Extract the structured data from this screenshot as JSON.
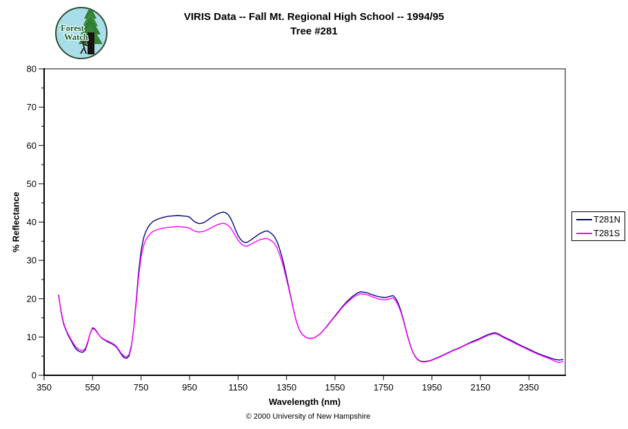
{
  "header": {
    "title_line1": "VIRIS Data -- Fall Mt. Regional High School -- 1994/95",
    "title_line2": "Tree #281"
  },
  "logo": {
    "line1": "Forest",
    "line2": "Watch",
    "circle_fill": "#a9dde9",
    "ring_color": "#2a4d2e",
    "tree_green": "#2e7d32",
    "trunk_color": "#17140d"
  },
  "footer": {
    "copyright": "© 2000 University of New Hampshire"
  },
  "chart_data": {
    "type": "line",
    "title": "VIRIS Data -- Fall Mt. Regional High School -- 1994/95 Tree #281",
    "xlabel": "Wavelength (nm)",
    "ylabel": "% Reflectance",
    "xlim": [
      350,
      2500
    ],
    "ylim": [
      0,
      80
    ],
    "x_major_ticks": [
      350,
      550,
      750,
      950,
      1150,
      1350,
      1550,
      1750,
      1950,
      2150,
      2350
    ],
    "y_major_ticks": [
      0,
      10,
      20,
      30,
      40,
      50,
      60,
      70,
      80
    ],
    "y_minor_step": 5,
    "grid": false,
    "legend_position": "right-outside",
    "plot_border_color": "#808080",
    "axis_color": "#000000",
    "x": [
      410,
      420,
      430,
      440,
      450,
      460,
      470,
      480,
      490,
      500,
      510,
      520,
      530,
      540,
      550,
      560,
      570,
      580,
      590,
      600,
      610,
      620,
      630,
      640,
      650,
      660,
      670,
      680,
      690,
      700,
      710,
      720,
      730,
      740,
      750,
      760,
      770,
      780,
      790,
      800,
      820,
      840,
      860,
      880,
      900,
      920,
      940,
      950,
      960,
      970,
      980,
      990,
      1000,
      1010,
      1020,
      1040,
      1060,
      1080,
      1090,
      1100,
      1110,
      1120,
      1130,
      1140,
      1150,
      1160,
      1170,
      1180,
      1190,
      1200,
      1220,
      1240,
      1260,
      1270,
      1280,
      1290,
      1300,
      1310,
      1320,
      1330,
      1340,
      1350,
      1360,
      1370,
      1380,
      1390,
      1400,
      1410,
      1420,
      1430,
      1440,
      1450,
      1460,
      1470,
      1480,
      1490,
      1500,
      1520,
      1540,
      1560,
      1580,
      1600,
      1620,
      1640,
      1655,
      1670,
      1685,
      1700,
      1720,
      1740,
      1760,
      1775,
      1790,
      1800,
      1810,
      1820,
      1830,
      1840,
      1850,
      1860,
      1870,
      1880,
      1890,
      1900,
      1910,
      1920,
      1930,
      1940,
      1950,
      1960,
      1980,
      2000,
      2020,
      2040,
      2060,
      2080,
      2100,
      2120,
      2140,
      2160,
      2180,
      2200,
      2210,
      2220,
      2230,
      2240,
      2260,
      2280,
      2300,
      2320,
      2340,
      2360,
      2380,
      2400,
      2420,
      2440,
      2460,
      2475,
      2490
    ],
    "series": [
      {
        "name": "T281N",
        "color": "#000080",
        "values": [
          20.9,
          16.5,
          13.5,
          11.8,
          10.3,
          9.2,
          8.0,
          7.0,
          6.4,
          6.1,
          6.0,
          6.6,
          8.5,
          11.0,
          12.4,
          12.1,
          11.1,
          10.2,
          9.6,
          9.2,
          8.8,
          8.5,
          8.2,
          7.8,
          7.2,
          6.3,
          5.3,
          4.6,
          4.4,
          5.0,
          7.5,
          12.5,
          19.5,
          27.0,
          32.5,
          35.8,
          37.6,
          38.8,
          39.6,
          40.2,
          40.8,
          41.2,
          41.5,
          41.6,
          41.7,
          41.6,
          41.5,
          41.3,
          40.7,
          40.1,
          39.8,
          39.6,
          39.7,
          39.9,
          40.3,
          41.2,
          42.0,
          42.5,
          42.6,
          42.4,
          41.9,
          40.9,
          39.5,
          37.9,
          36.5,
          35.5,
          34.9,
          34.6,
          34.8,
          35.2,
          36.1,
          37.0,
          37.6,
          37.7,
          37.4,
          36.9,
          36.2,
          35.0,
          33.3,
          31.2,
          28.7,
          25.8,
          22.8,
          19.8,
          16.8,
          14.2,
          12.3,
          11.1,
          10.4,
          9.9,
          9.7,
          9.6,
          9.7,
          10.0,
          10.4,
          10.9,
          11.6,
          13.1,
          14.7,
          16.3,
          17.9,
          19.3,
          20.5,
          21.4,
          21.8,
          21.7,
          21.5,
          21.1,
          20.7,
          20.4,
          20.3,
          20.6,
          20.8,
          20.1,
          18.9,
          17.2,
          15.0,
          12.6,
          10.2,
          8.0,
          6.2,
          5.0,
          4.2,
          3.8,
          3.6,
          3.6,
          3.7,
          3.8,
          4.0,
          4.3,
          4.8,
          5.4,
          6.0,
          6.6,
          7.1,
          7.7,
          8.3,
          8.9,
          9.4,
          10.0,
          10.6,
          11.0,
          11.1,
          10.9,
          10.6,
          10.2,
          9.6,
          9.0,
          8.3,
          7.7,
          7.1,
          6.5,
          5.9,
          5.4,
          4.9,
          4.5,
          4.1,
          4.0,
          4.1
        ]
      },
      {
        "name": "T281S",
        "color": "#ff00ff",
        "values": [
          20.5,
          16.8,
          13.8,
          12.0,
          10.6,
          9.5,
          8.4,
          7.4,
          6.9,
          6.6,
          6.5,
          7.0,
          8.8,
          11.0,
          12.2,
          11.9,
          11.0,
          10.2,
          9.7,
          9.3,
          9.0,
          8.7,
          8.4,
          8.0,
          7.4,
          6.5,
          5.6,
          5.0,
          4.8,
          5.4,
          7.8,
          12.3,
          18.8,
          25.8,
          31.0,
          33.8,
          35.4,
          36.4,
          37.1,
          37.6,
          38.1,
          38.4,
          38.6,
          38.7,
          38.8,
          38.7,
          38.6,
          38.4,
          38.0,
          37.7,
          37.5,
          37.4,
          37.5,
          37.6,
          37.9,
          38.5,
          39.2,
          39.6,
          39.7,
          39.5,
          39.1,
          38.4,
          37.4,
          36.3,
          35.3,
          34.5,
          34.0,
          33.7,
          33.8,
          34.1,
          34.8,
          35.4,
          35.7,
          35.7,
          35.4,
          35.0,
          34.4,
          33.3,
          31.8,
          29.9,
          27.7,
          25.1,
          22.4,
          19.6,
          16.7,
          14.2,
          12.3,
          11.1,
          10.4,
          9.9,
          9.7,
          9.6,
          9.7,
          10.0,
          10.4,
          10.9,
          11.6,
          13.0,
          14.6,
          16.1,
          17.7,
          19.0,
          20.1,
          20.9,
          21.3,
          21.2,
          21.0,
          20.6,
          20.1,
          19.8,
          19.7,
          20.0,
          20.2,
          19.5,
          18.4,
          16.8,
          14.7,
          12.4,
          10.0,
          7.9,
          6.1,
          4.9,
          4.1,
          3.7,
          3.5,
          3.5,
          3.6,
          3.7,
          3.9,
          4.2,
          4.7,
          5.3,
          5.9,
          6.5,
          7.0,
          7.6,
          8.2,
          8.7,
          9.2,
          9.8,
          10.4,
          10.8,
          10.9,
          10.7,
          10.4,
          10.0,
          9.4,
          8.8,
          8.1,
          7.5,
          6.9,
          6.3,
          5.7,
          5.2,
          4.7,
          4.2,
          3.6,
          3.3,
          3.6
        ]
      }
    ]
  }
}
